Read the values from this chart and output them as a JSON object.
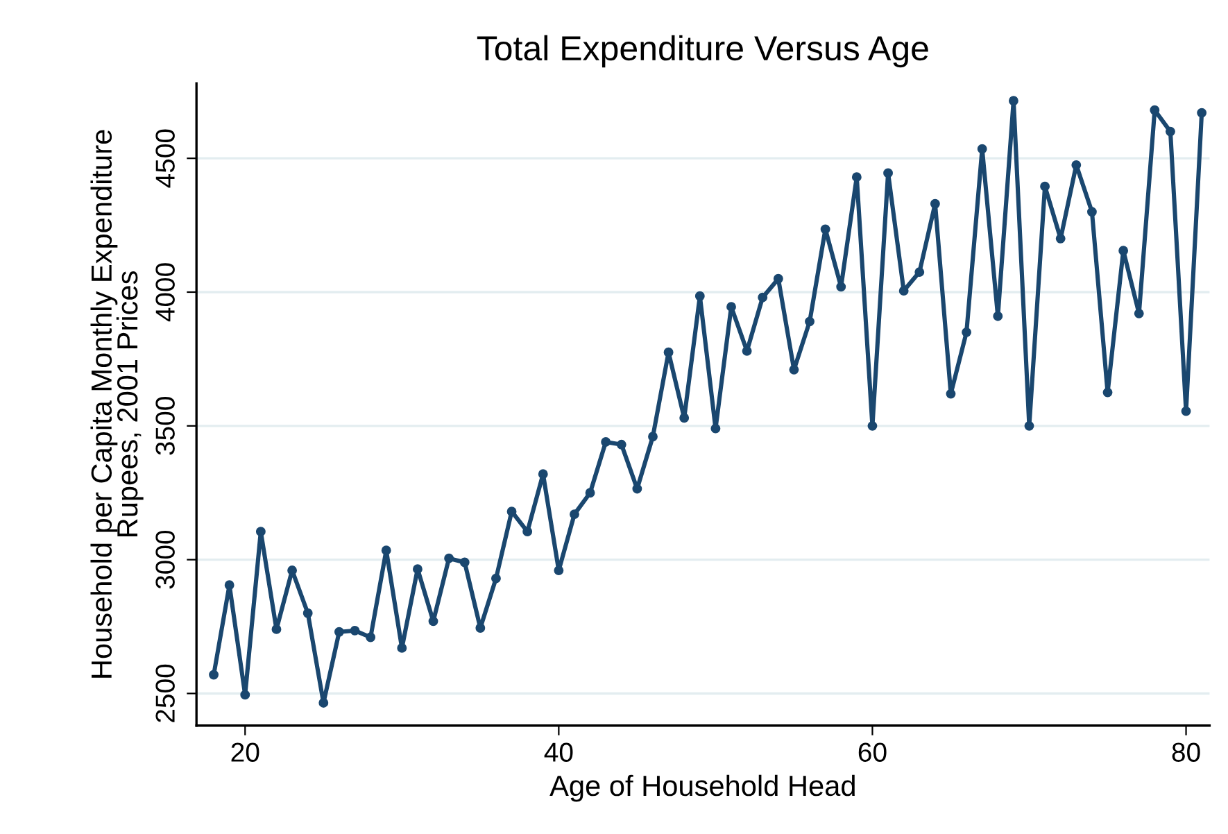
{
  "chart_data": {
    "type": "line",
    "title": "Total Expenditure Versus Age",
    "xlabel": "Age of Household Head",
    "ylabel": "Household per Capita Monthly Expenditure\nRupees, 2001 Prices",
    "x": [
      18,
      19,
      20,
      21,
      22,
      23,
      24,
      25,
      26,
      27,
      28,
      29,
      30,
      31,
      32,
      33,
      34,
      35,
      36,
      37,
      38,
      39,
      40,
      41,
      42,
      43,
      44,
      45,
      46,
      47,
      48,
      49,
      50,
      51,
      52,
      53,
      54,
      55,
      56,
      57,
      58,
      59,
      60,
      61,
      62,
      63,
      64,
      65,
      66,
      67,
      68,
      69,
      70,
      71,
      72,
      73,
      74,
      75,
      76,
      77,
      78,
      79,
      80,
      81
    ],
    "series": [
      {
        "color": "#1a476f",
        "values": [
          2570,
          2905,
          2495,
          3105,
          2740,
          2960,
          2800,
          2465,
          2730,
          2735,
          2710,
          3035,
          2670,
          2965,
          2770,
          3005,
          2990,
          2745,
          2930,
          3180,
          3105,
          3320,
          2960,
          3170,
          3250,
          3440,
          3430,
          3265,
          3460,
          3775,
          3530,
          3985,
          3490,
          3945,
          3780,
          3980,
          4050,
          3710,
          3890,
          4235,
          4020,
          4430,
          3500,
          4445,
          4005,
          4075,
          4330,
          3620,
          3850,
          4535,
          3910,
          4715,
          3500,
          4395,
          4200,
          4475,
          4300,
          3625,
          4155,
          3920,
          4680,
          4600,
          3555,
          4670
        ]
      }
    ],
    "xlim": [
      16.9,
      81.5
    ],
    "ylim": [
      2380,
      4780
    ],
    "xticks": [
      20,
      40,
      60,
      80
    ],
    "yticks": [
      2500,
      3000,
      3500,
      4000,
      4500
    ],
    "grid": "y",
    "marker": "circle",
    "line_style": "solid"
  }
}
